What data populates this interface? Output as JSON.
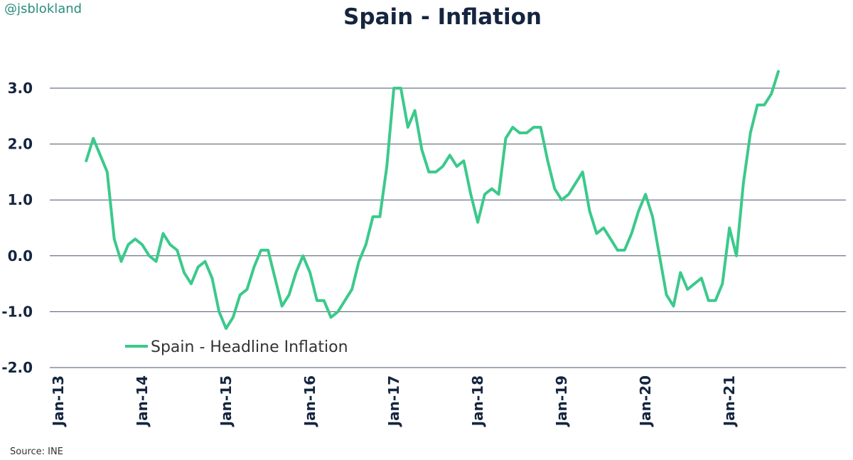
{
  "watermark": "@jsblokland",
  "source": "Source: INE",
  "colors": {
    "line": "#3cc98b",
    "grid": "#4a5568",
    "text": "#15253f"
  },
  "chart_data": {
    "type": "line",
    "title": "Spain - Inflation",
    "xlabel": "",
    "ylabel": "",
    "ylim": [
      -2.0,
      3.0
    ],
    "yticks": [
      "3.0",
      "2.0",
      "1.0",
      "0.0",
      "-1.0",
      "-2.0"
    ],
    "ytick_values": [
      3.0,
      2.0,
      1.0,
      0.0,
      -1.0,
      -2.0
    ],
    "xticks": [
      "Jan-13",
      "Jan-14",
      "Jan-15",
      "Jan-16",
      "Jan-17",
      "Jan-18",
      "Jan-19",
      "Jan-20",
      "Jan-21"
    ],
    "grid": "horizontal",
    "legend_position": "bottom-left",
    "series": [
      {
        "name": "Spain - Headline Inflation",
        "start": "2013-05",
        "frequency": "monthly",
        "values": [
          1.7,
          2.1,
          1.8,
          1.5,
          0.3,
          -0.1,
          0.2,
          0.3,
          0.2,
          0.0,
          -0.1,
          0.4,
          0.2,
          0.1,
          -0.3,
          -0.5,
          -0.2,
          -0.1,
          -0.4,
          -1.0,
          -1.3,
          -1.1,
          -0.7,
          -0.6,
          -0.2,
          0.1,
          0.1,
          -0.4,
          -0.9,
          -0.7,
          -0.3,
          0.0,
          -0.3,
          -0.8,
          -0.8,
          -1.1,
          -1.0,
          -0.8,
          -0.6,
          -0.1,
          0.2,
          0.7,
          0.7,
          1.6,
          3.0,
          3.0,
          2.3,
          2.6,
          1.9,
          1.5,
          1.5,
          1.6,
          1.8,
          1.6,
          1.7,
          1.1,
          0.6,
          1.1,
          1.2,
          1.1,
          2.1,
          2.3,
          2.2,
          2.2,
          2.3,
          2.3,
          1.7,
          1.2,
          1.0,
          1.1,
          1.3,
          1.5,
          0.8,
          0.4,
          0.5,
          0.3,
          0.1,
          0.1,
          0.4,
          0.8,
          1.1,
          0.7,
          0.0,
          -0.7,
          -0.9,
          -0.3,
          -0.6,
          -0.5,
          -0.4,
          -0.8,
          -0.8,
          -0.5,
          0.5,
          0.0,
          1.3,
          2.2,
          2.7,
          2.7,
          2.9,
          3.3
        ]
      }
    ]
  }
}
